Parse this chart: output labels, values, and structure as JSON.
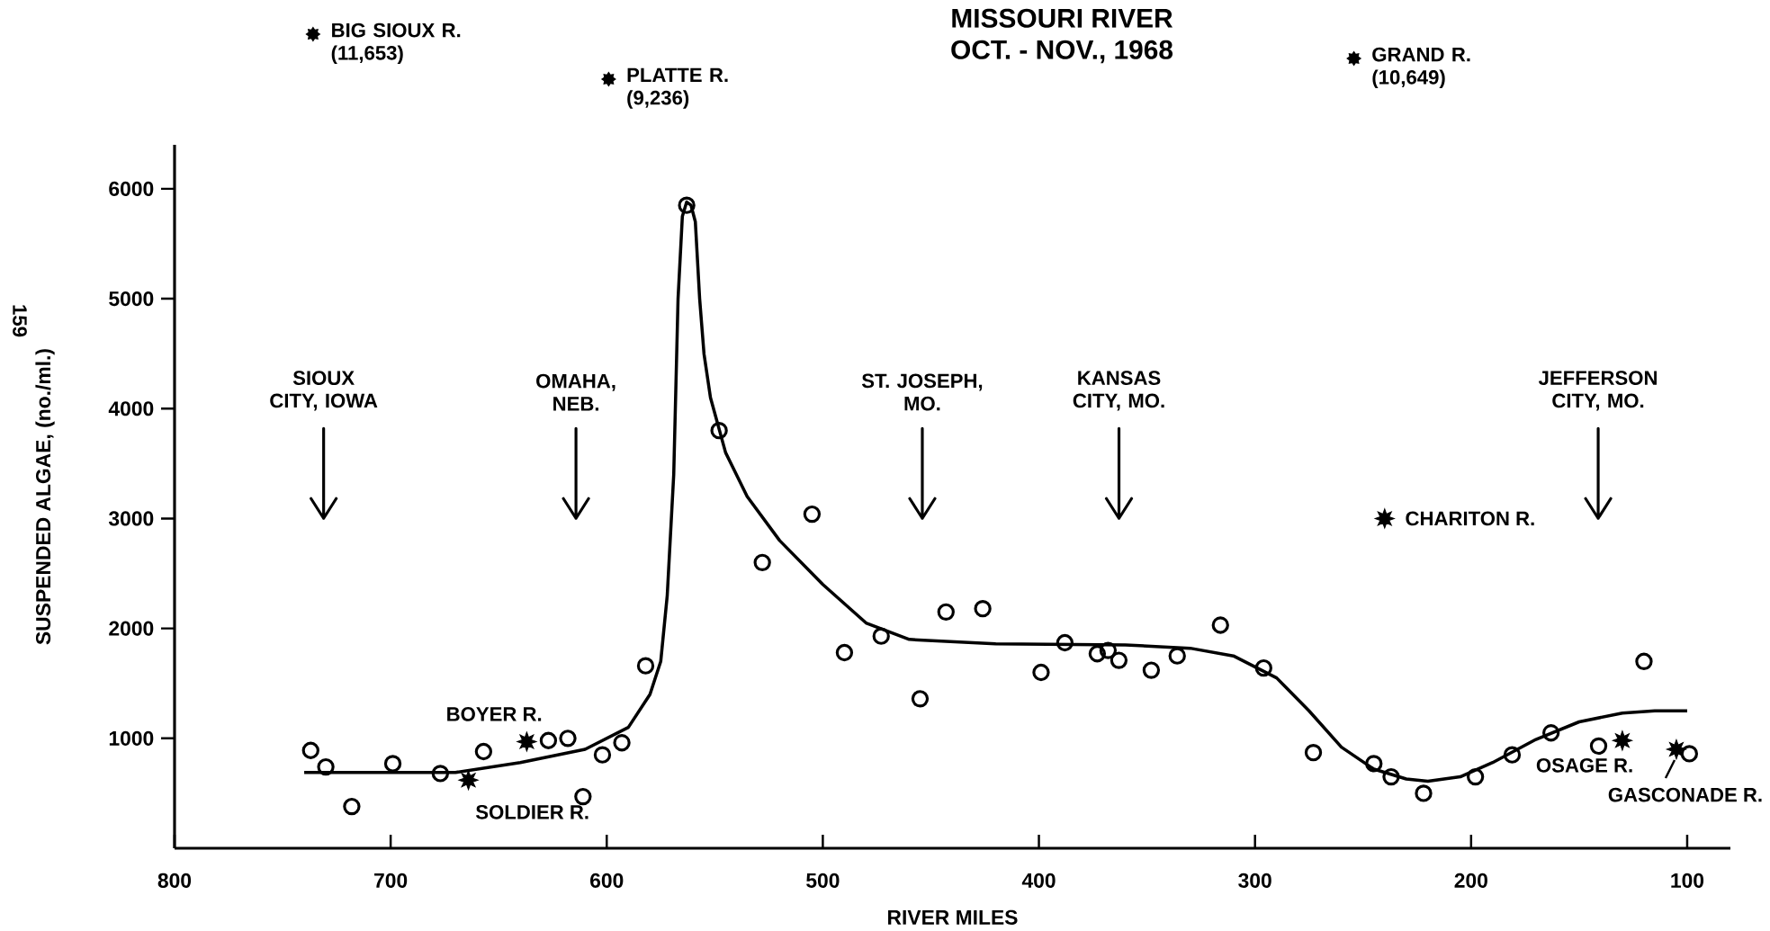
{
  "chart_data": {
    "type": "scatter",
    "title": "MISSOURI RIVER",
    "subtitle": "OCT. - NOV., 1968",
    "xlabel": "RIVER MILES",
    "ylabel": "SUSPENDED ALGAE, (no./ml.)",
    "xlim": [
      800,
      80
    ],
    "ylim": [
      0,
      6400
    ],
    "xticks": [
      800,
      700,
      600,
      500,
      400,
      300,
      200,
      100
    ],
    "yticks": [
      1000,
      2000,
      3000,
      4000,
      5000,
      6000
    ],
    "grid": false,
    "series": [
      {
        "marker": "circle",
        "color": "#000000",
        "x": [
          737,
          730,
          718,
          699,
          677,
          657,
          627,
          618,
          611,
          602,
          593,
          582,
          563,
          548,
          528,
          505,
          490,
          473,
          455,
          443,
          426,
          399,
          388,
          373,
          368,
          363,
          348,
          336,
          316,
          296,
          273,
          245,
          237,
          222,
          198,
          181,
          163,
          141,
          120,
          99
        ],
        "values": [
          890,
          740,
          380,
          770,
          680,
          880,
          980,
          1000,
          470,
          850,
          960,
          1660,
          5850,
          3800,
          2600,
          3040,
          1780,
          1930,
          1360,
          2150,
          2180,
          1600,
          1870,
          1770,
          1800,
          1710,
          1620,
          1750,
          2030,
          1640,
          870,
          770,
          650,
          500,
          650,
          850,
          1050,
          930,
          1700,
          860
        ]
      },
      {
        "marker": "star",
        "color": "#000000",
        "x": [
          664,
          637,
          240,
          130,
          105
        ],
        "values": [
          620,
          970,
          3000,
          980,
          900
        ]
      },
      {
        "type": "line",
        "marker": "none",
        "line_style": "solid",
        "color": "#000000",
        "x": [
          740,
          700,
          670,
          640,
          610,
          590,
          580,
          575,
          572,
          569,
          567,
          565,
          563,
          561,
          559,
          557,
          555,
          552,
          545,
          535,
          520,
          500,
          480,
          460,
          420,
          360,
          330,
          310,
          290,
          275,
          260,
          245,
          230,
          220,
          205,
          190,
          170,
          150,
          130,
          115,
          100
        ],
        "values": [
          690,
          690,
          690,
          780,
          900,
          1100,
          1400,
          1700,
          2300,
          3400,
          5000,
          5750,
          5880,
          5850,
          5700,
          5000,
          4500,
          4100,
          3600,
          3200,
          2800,
          2400,
          2050,
          1900,
          1860,
          1850,
          1820,
          1750,
          1550,
          1250,
          920,
          720,
          630,
          610,
          650,
          780,
          990,
          1150,
          1230,
          1250,
          1250
        ]
      }
    ],
    "annotations": [
      "159",
      "SIOUX CITY, IOWA",
      "OMAHA, NEB.",
      "ST. JOSEPH, MO.",
      "KANSAS CITY, MO.",
      "JEFFERSON CITY, MO.",
      "BIG SIOUX R. (11,653)",
      "PLATTE R. (9,236)",
      "GRAND R. (10,649)",
      {
        "text": "SOLDIER R.",
        "x": 664,
        "y": 620
      },
      {
        "text": "BOYER R.",
        "x": 637,
        "y": 970
      },
      {
        "text": "CHARITON R.",
        "x": 240,
        "y": 3000
      },
      {
        "text": "OSAGE R.",
        "x": 130,
        "y": 980
      },
      {
        "text": "GASCONADE R.",
        "x": 105,
        "y": 900
      }
    ]
  }
}
